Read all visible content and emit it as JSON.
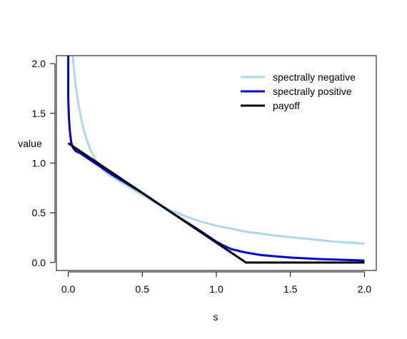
{
  "chart_data": {
    "type": "line",
    "title": "",
    "xlabel": "s",
    "ylabel": "value",
    "xlim": [
      -0.08,
      2.08
    ],
    "ylim": [
      -0.08,
      2.08
    ],
    "x_ticks": [
      0.0,
      0.5,
      1.0,
      1.5,
      2.0
    ],
    "x_tick_labels": [
      "0.0",
      "0.5",
      "1.0",
      "1.5",
      "2.0"
    ],
    "y_ticks": [
      0.0,
      0.5,
      1.0,
      1.5,
      2.0
    ],
    "y_tick_labels": [
      "0.0",
      "0.5",
      "1.0",
      "1.5",
      "2.0"
    ],
    "grid": false,
    "legend_position": "top-right",
    "series": [
      {
        "name": "spectrally negative",
        "color": "#add8e6",
        "x": [
          0.03,
          0.04,
          0.05,
          0.07,
          0.1,
          0.13,
          0.15,
          0.2,
          0.25,
          0.3,
          0.4,
          0.5,
          0.6,
          0.7,
          0.8,
          0.9,
          1.0,
          1.1,
          1.2,
          1.4,
          1.6,
          1.8,
          2.0
        ],
        "y": [
          2.08,
          1.92,
          1.78,
          1.58,
          1.36,
          1.21,
          1.13,
          0.99,
          0.91,
          0.86,
          0.77,
          0.68,
          0.59,
          0.52,
          0.46,
          0.41,
          0.37,
          0.34,
          0.31,
          0.27,
          0.24,
          0.21,
          0.19
        ]
      },
      {
        "name": "spectrally positive",
        "color": "#0000cd",
        "x": [
          0.0,
          0.0,
          0.005,
          0.01,
          0.02,
          0.03,
          0.05,
          0.08,
          0.1,
          0.2,
          0.3,
          0.5,
          0.7,
          0.9,
          1.0,
          1.05,
          1.1,
          1.2,
          1.3,
          1.5,
          1.7,
          2.0
        ],
        "y": [
          2.08,
          1.65,
          1.45,
          1.33,
          1.21,
          1.16,
          1.12,
          1.1,
          1.08,
          0.98,
          0.88,
          0.7,
          0.5,
          0.31,
          0.21,
          0.17,
          0.135,
          0.1,
          0.075,
          0.05,
          0.035,
          0.02
        ]
      },
      {
        "name": "payoff",
        "color": "#000000",
        "x": [
          0.0,
          1.2,
          2.0
        ],
        "y": [
          1.2,
          0.0,
          0.0
        ]
      }
    ]
  }
}
